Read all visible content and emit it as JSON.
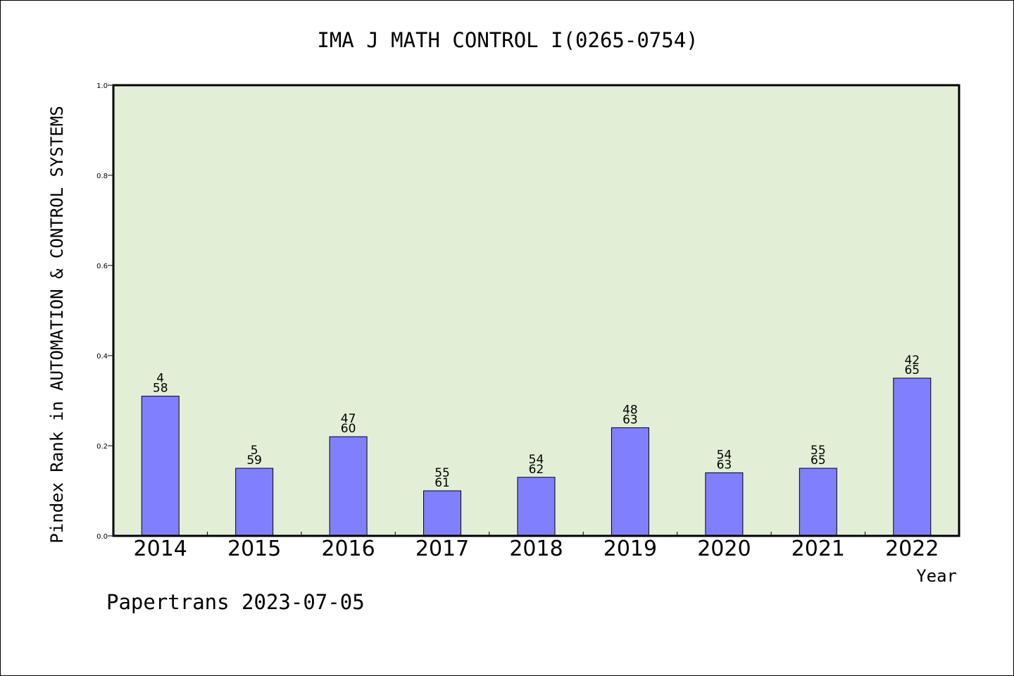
{
  "chart_data": {
    "type": "bar",
    "title": "IMA J MATH CONTROL I(0265-0754)",
    "xlabel": "Year",
    "ylabel": "Pindex Rank in AUTOMATION & CONTROL SYSTEMS",
    "categories": [
      "2014",
      "2015",
      "2016",
      "2017",
      "2018",
      "2019",
      "2020",
      "2021",
      "2022"
    ],
    "values": [
      0.31,
      0.15,
      0.22,
      0.1,
      0.13,
      0.24,
      0.14,
      0.15,
      0.35
    ],
    "rank_labels": [
      "4",
      "5",
      "47",
      "55",
      "54",
      "48",
      "54",
      "55",
      "42"
    ],
    "total_labels": [
      "58",
      "59",
      "60",
      "61",
      "62",
      "63",
      "63",
      "65",
      "65"
    ],
    "ylim": [
      0,
      1.0
    ],
    "yticks": [
      "0.0",
      "0.2",
      "0.4",
      "0.6",
      "0.8",
      "1.0"
    ],
    "grid": false,
    "plot_background": "#e2efd6",
    "bar_color": "#8080ff"
  },
  "footer": "Papertrans 2023-07-05"
}
